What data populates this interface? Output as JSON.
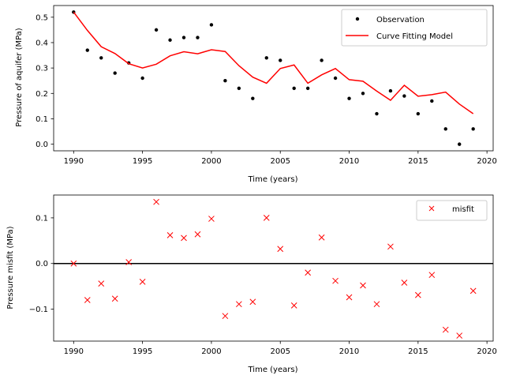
{
  "chart_data": [
    {
      "type": "line",
      "xlabel": "Time (years)",
      "ylabel": "Pressure of aquifer (MPa)",
      "xlim": [
        1988.55,
        2020.45
      ],
      "ylim": [
        -0.026,
        0.546
      ],
      "xticks": [
        1990,
        1995,
        2000,
        2005,
        2010,
        2015,
        2020
      ],
      "yticks": [
        0.0,
        0.1,
        0.2,
        0.3,
        0.4,
        0.5
      ],
      "ytick_labels": [
        "0.0",
        "0.1",
        "0.2",
        "0.3",
        "0.4",
        "0.5"
      ],
      "legend_position": "top-right",
      "x": [
        1990,
        1991,
        1992,
        1993,
        1994,
        1995,
        1996,
        1997,
        1998,
        1999,
        2000,
        2001,
        2002,
        2003,
        2004,
        2005,
        2006,
        2007,
        2008,
        2009,
        2010,
        2011,
        2012,
        2013,
        2014,
        2015,
        2016,
        2017,
        2018,
        2019
      ],
      "series": [
        {
          "name": "Observation",
          "style": "points",
          "color": "#000000",
          "values": [
            0.52,
            0.37,
            0.34,
            0.28,
            0.32,
            0.26,
            0.45,
            0.41,
            0.42,
            0.42,
            0.47,
            0.25,
            0.22,
            0.18,
            0.34,
            0.33,
            0.22,
            0.22,
            0.33,
            0.26,
            0.18,
            0.2,
            0.12,
            0.21,
            0.19,
            0.12,
            0.17,
            0.06,
            0.0,
            0.06
          ]
        },
        {
          "name": "Curve Fitting Model",
          "style": "line",
          "color": "#ff0000",
          "values": [
            0.52,
            0.448,
            0.384,
            0.357,
            0.317,
            0.3,
            0.315,
            0.348,
            0.364,
            0.356,
            0.372,
            0.365,
            0.309,
            0.264,
            0.24,
            0.298,
            0.312,
            0.24,
            0.273,
            0.298,
            0.254,
            0.248,
            0.209,
            0.173,
            0.232,
            0.189,
            0.195,
            0.205,
            0.158,
            0.12
          ]
        }
      ]
    },
    {
      "type": "scatter",
      "xlabel": "Time (years)",
      "ylabel": "Pressure misfit (MPa)",
      "xlim": [
        1988.55,
        2020.45
      ],
      "ylim": [
        -0.17,
        0.15
      ],
      "xticks": [
        1990,
        1995,
        2000,
        2005,
        2010,
        2015,
        2020
      ],
      "yticks": [
        -0.1,
        0.0,
        0.1
      ],
      "ytick_labels": [
        "−0.1",
        "0.0",
        "0.1"
      ],
      "zero_line": 0,
      "legend_position": "top-right",
      "x": [
        1990,
        1991,
        1992,
        1993,
        1994,
        1995,
        1996,
        1997,
        1998,
        1999,
        2000,
        2001,
        2002,
        2003,
        2004,
        2005,
        2006,
        2007,
        2008,
        2009,
        2010,
        2011,
        2012,
        2013,
        2014,
        2015,
        2016,
        2017,
        2018,
        2019
      ],
      "series": [
        {
          "name": "misfit",
          "marker": "x",
          "color": "#ff0000",
          "values": [
            0.0,
            -0.08,
            -0.044,
            -0.077,
            0.003,
            -0.04,
            0.135,
            0.062,
            0.056,
            0.064,
            0.098,
            -0.115,
            -0.089,
            -0.084,
            0.1,
            0.032,
            -0.092,
            -0.02,
            0.057,
            -0.038,
            -0.074,
            -0.048,
            -0.089,
            0.037,
            -0.042,
            -0.069,
            -0.025,
            -0.145,
            -0.158,
            -0.06
          ]
        }
      ]
    }
  ]
}
